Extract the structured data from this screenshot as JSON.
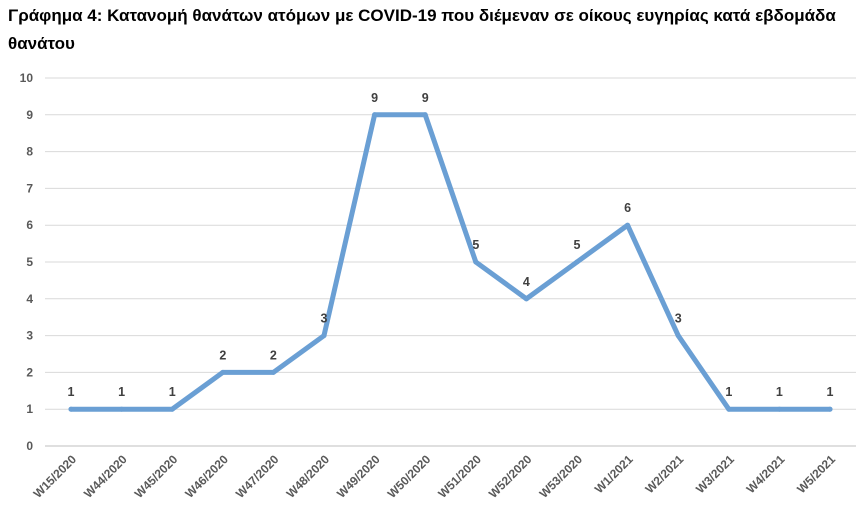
{
  "chart_data": {
    "type": "line",
    "title": "Γράφημα 4: Κατανομή θανάτων ατόμων με COVID-19 που διέμεναν σε οίκους ευγηρίας κατά εβδομάδα θανάτου",
    "categories": [
      "W15/2020",
      "W44/2020",
      "W45/2020",
      "W46/2020",
      "W47/2020",
      "W48/2020",
      "W49/2020",
      "W50/2020",
      "W51/2020",
      "W52/2020",
      "W53/2020",
      "W1/2021",
      "W2/2021",
      "W3/2021",
      "W4/2021",
      "W5/2021"
    ],
    "values": [
      1,
      1,
      1,
      2,
      2,
      3,
      9,
      9,
      5,
      4,
      5,
      6,
      3,
      1,
      1,
      1
    ],
    "ylim": [
      0,
      10
    ],
    "yticks": [
      "0",
      "1",
      "2",
      "3",
      "4",
      "5",
      "6",
      "7",
      "8",
      "9",
      "10"
    ],
    "data_labels": [
      "1",
      "1",
      "1",
      "2",
      "2",
      "3",
      "9",
      "9",
      "5",
      "4",
      "5",
      "6",
      "3",
      "1",
      "1",
      "1"
    ],
    "grid": true,
    "legend": "none",
    "xlabel": "",
    "ylabel": "",
    "colors": {
      "line": "#6a9fd4",
      "grid": "#d9d9d9",
      "axis": "#bfbfbf",
      "tick_text": "#595959",
      "label_text": "#404040"
    }
  }
}
